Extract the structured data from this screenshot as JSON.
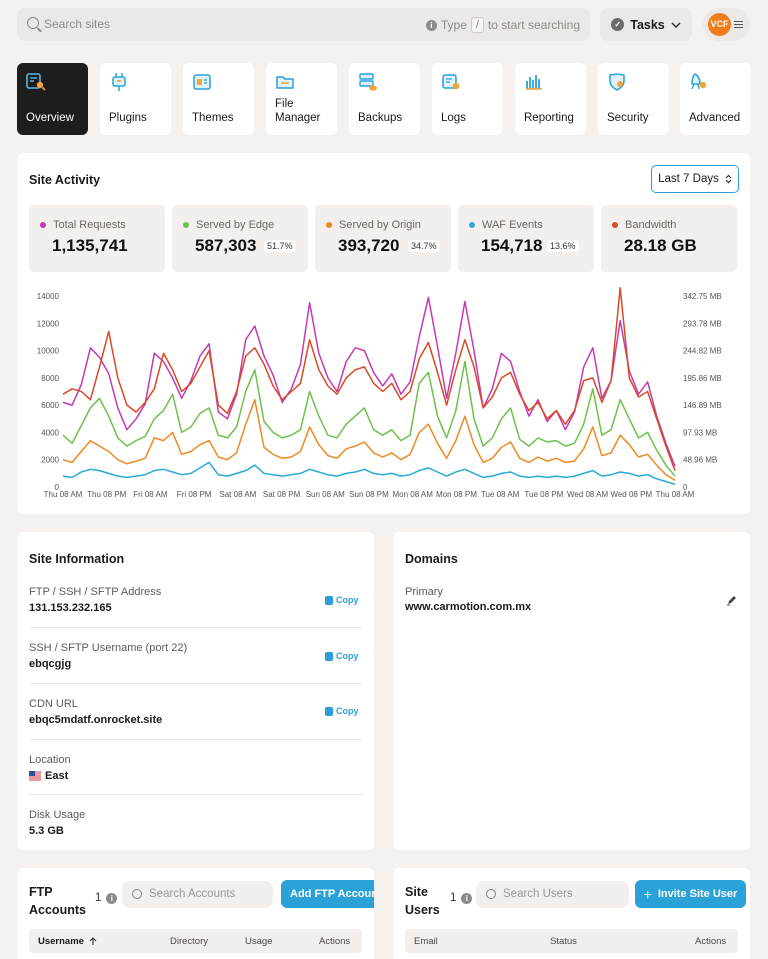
{
  "topbar": {
    "search_placeholder": "Search sites",
    "hint_type": "Type",
    "hint_key": "/",
    "hint_rest": "to start searching",
    "tasks_label": "Tasks",
    "avatar_initials": "VCF"
  },
  "nav": [
    {
      "label": "Overview",
      "icon": "overview-icon"
    },
    {
      "label": "Plugins",
      "icon": "plugins-icon"
    },
    {
      "label": "Themes",
      "icon": "themes-icon"
    },
    {
      "label": "File\nManager",
      "icon": "file-manager-icon"
    },
    {
      "label": "Backups",
      "icon": "backups-icon"
    },
    {
      "label": "Logs",
      "icon": "logs-icon"
    },
    {
      "label": "Reporting",
      "icon": "reporting-icon"
    },
    {
      "label": "Security",
      "icon": "security-icon"
    },
    {
      "label": "Advanced",
      "icon": "advanced-icon"
    }
  ],
  "activity": {
    "title": "Site Activity",
    "range": "Last 7 Days",
    "stats": [
      {
        "label": "Total Requests",
        "value": "1,135,741",
        "pct": "",
        "color": "#c43ab5"
      },
      {
        "label": "Served by Edge",
        "value": "587,303",
        "pct": "51.7%",
        "color": "#6cc24a"
      },
      {
        "label": "Served by Origin",
        "value": "393,720",
        "pct": "34.7%",
        "color": "#ee8a22"
      },
      {
        "label": "WAF Events",
        "value": "154,718",
        "pct": "13.6%",
        "color": "#2aa9d6"
      },
      {
        "label": "Bandwidth",
        "value": "28.18 GB",
        "pct": "",
        "color": "#d84a26"
      }
    ]
  },
  "chart_data": {
    "type": "line",
    "y_left_ticks": [
      "14000",
      "12000",
      "10000",
      "8000",
      "6000",
      "4000",
      "2000",
      "0"
    ],
    "y_right_ticks": [
      "342.75 MB",
      "293.78 MB",
      "244.82 MB",
      "195.86 MB",
      "146.89 MB",
      "97.93 MB",
      "48.96 MB",
      "0"
    ],
    "x_ticks": [
      "Thu 08 AM",
      "Thu 08 PM",
      "Fri 08 AM",
      "Fri 08 PM",
      "Sat 08 AM",
      "Sat 08 PM",
      "Sun 08 AM",
      "Sun 08 PM",
      "Mon 08 AM",
      "Mon 08 PM",
      "Tue 08 AM",
      "Tue 08 PM",
      "Wed 08 AM",
      "Wed 08 PM",
      "Thu 08 AM"
    ],
    "ylim": [
      0,
      14000
    ],
    "grid": false,
    "series": [
      {
        "color": "#c43ab5",
        "values": [
          6200,
          6000,
          7500,
          10200,
          9500,
          8300,
          5800,
          4200,
          5000,
          6100,
          9800,
          9200,
          8000,
          6500,
          7800,
          9600,
          10500,
          5500,
          5000,
          6800,
          10800,
          11800,
          9600,
          8200,
          6200,
          7200,
          9000,
          13500,
          9800,
          8000,
          7000,
          9200,
          10200,
          10000,
          8400,
          7400,
          8300,
          6800,
          7700,
          11000,
          13900,
          10300,
          6500,
          9800,
          13600,
          10000,
          5800,
          7200,
          9800,
          9200,
          7000,
          5200,
          6400,
          4800,
          5600,
          4200,
          5500,
          8800,
          10200,
          6500,
          7800,
          12200,
          8500,
          6800,
          7700,
          5200,
          3200,
          1500
        ]
      },
      {
        "color": "#6cc24a",
        "values": [
          3800,
          3200,
          4500,
          5800,
          6500,
          5200,
          3600,
          3000,
          3400,
          3700,
          5000,
          5600,
          6800,
          4000,
          4400,
          5400,
          5800,
          3800,
          3600,
          4400,
          7000,
          8600,
          4800,
          4000,
          3600,
          3800,
          4200,
          7000,
          5200,
          3800,
          3600,
          4600,
          5200,
          5800,
          4200,
          3800,
          4200,
          3400,
          3800,
          7600,
          8400,
          5200,
          3600,
          5600,
          9200,
          5000,
          3000,
          3600,
          5000,
          5800,
          3500,
          3000,
          3600,
          3300,
          3400,
          3000,
          3200,
          4600,
          7200,
          3800,
          4200,
          6400,
          5000,
          3600,
          4000,
          2700,
          1600,
          800
        ]
      },
      {
        "color": "#ee8a22",
        "values": [
          2000,
          1800,
          2600,
          3400,
          3000,
          2600,
          2000,
          1700,
          1900,
          2100,
          3600,
          3400,
          4000,
          2400,
          2600,
          3100,
          3400,
          2200,
          2000,
          2500,
          4600,
          6400,
          2900,
          2400,
          2100,
          2200,
          2600,
          4400,
          3100,
          2300,
          2100,
          2800,
          3000,
          3300,
          2500,
          2200,
          2500,
          2000,
          2400,
          4000,
          4600,
          3200,
          2100,
          3400,
          5200,
          3100,
          1800,
          2100,
          2900,
          3300,
          2100,
          1800,
          2200,
          1900,
          2100,
          1800,
          1900,
          2800,
          4400,
          2300,
          2500,
          3800,
          3100,
          2200,
          2400,
          1600,
          900,
          500
        ]
      },
      {
        "color": "#2aa9d6",
        "values": [
          800,
          700,
          1100,
          1300,
          1200,
          1000,
          800,
          700,
          800,
          900,
          1200,
          1300,
          1100,
          900,
          1000,
          1400,
          1800,
          900,
          800,
          1000,
          1200,
          1600,
          1000,
          900,
          800,
          900,
          1000,
          1300,
          1100,
          900,
          800,
          1000,
          1100,
          1300,
          1000,
          900,
          1000,
          800,
          900,
          1200,
          1400,
          1100,
          800,
          1100,
          1300,
          1000,
          700,
          800,
          1000,
          1100,
          800,
          700,
          800,
          700,
          800,
          700,
          800,
          1000,
          1200,
          800,
          900,
          1100,
          1000,
          800,
          900,
          600,
          400,
          200
        ]
      },
      {
        "color": "#d84a26",
        "values": [
          6800,
          7200,
          7000,
          6400,
          8800,
          11400,
          8000,
          6000,
          5500,
          6200,
          7200,
          9800,
          8600,
          7000,
          7600,
          8800,
          10000,
          6000,
          5400,
          7000,
          9600,
          10200,
          9000,
          7400,
          6400,
          7000,
          7600,
          10800,
          8600,
          7400,
          6800,
          8000,
          8600,
          8800,
          7600,
          7000,
          7600,
          6400,
          7000,
          9400,
          10600,
          8400,
          6000,
          8600,
          10800,
          8800,
          5800,
          6600,
          8000,
          8400,
          6800,
          5600,
          6200,
          5000,
          5600,
          4600,
          5600,
          7800,
          8000,
          6200,
          7800,
          14600,
          8000,
          6600,
          7000,
          5000,
          3000,
          1200
        ]
      }
    ]
  },
  "siteinfo": {
    "title": "Site Information",
    "copy_label": "Copy",
    "rows": [
      {
        "label": "FTP / SSH / SFTP Address",
        "value": "131.153.232.165"
      },
      {
        "label": "SSH / SFTP Username (port 22)",
        "value": "ebqcgjg"
      },
      {
        "label": "CDN URL",
        "value": "ebqc5mdatf.onrocket.site"
      },
      {
        "label": "Location",
        "value": "East"
      },
      {
        "label": "Disk Usage",
        "value": "5.3 GB"
      }
    ]
  },
  "domains": {
    "title": "Domains",
    "primary_label": "Primary",
    "primary_value": "www.carmotion.com.mx"
  },
  "ftp": {
    "title": "FTP\nAccounts",
    "count": "1",
    "search_placeholder": "Search Accounts",
    "add_label": "Add FTP Account",
    "columns": [
      "Username",
      "Directory",
      "Usage",
      "Actions"
    ]
  },
  "users": {
    "title": "Site\nUsers",
    "count": "1",
    "search_placeholder": "Search Users",
    "invite_label": "Invite Site User",
    "columns": [
      "Email",
      "Status",
      "Actions"
    ]
  }
}
